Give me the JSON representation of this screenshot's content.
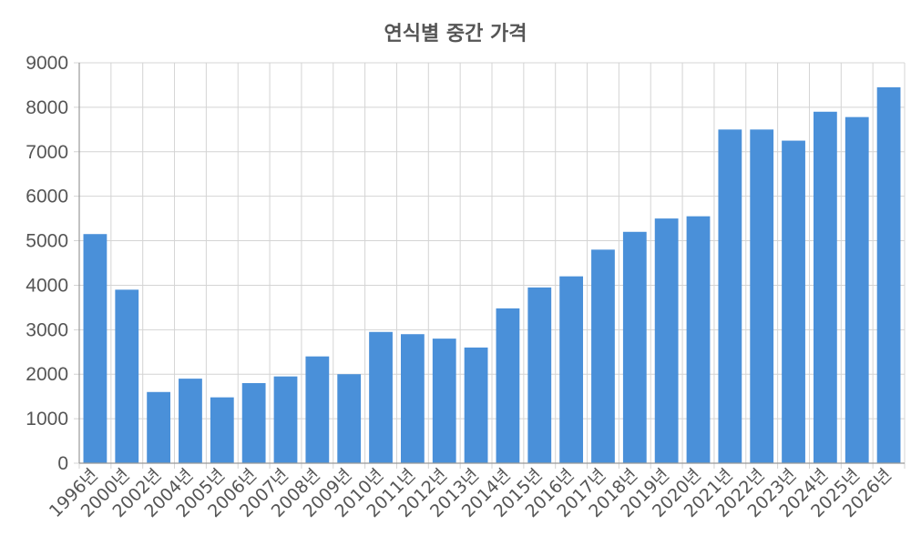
{
  "chart_data": {
    "type": "bar",
    "title": "연식별 중간 가격",
    "xlabel": "",
    "ylabel": "",
    "categories": [
      "1996년",
      "2000년",
      "2002년",
      "2004년",
      "2005년",
      "2006년",
      "2007년",
      "2008년",
      "2009년",
      "2010년",
      "2011년",
      "2012년",
      "2013년",
      "2014년",
      "2015년",
      "2016년",
      "2017년",
      "2018년",
      "2019년",
      "2020년",
      "2021년",
      "2022년",
      "2023년",
      "2024년",
      "2025년",
      "2026년"
    ],
    "values": [
      5150,
      3900,
      1600,
      1900,
      1480,
      1800,
      1950,
      2400,
      2000,
      2950,
      2900,
      2800,
      2600,
      3480,
      3950,
      4200,
      4800,
      5200,
      5500,
      5550,
      7500,
      7500,
      7250,
      7900,
      7780,
      8450
    ],
    "ylim": [
      0,
      9000
    ],
    "yticks": [
      0,
      1000,
      2000,
      3000,
      4000,
      5000,
      6000,
      7000,
      8000,
      9000
    ],
    "grid": true,
    "legend": "none",
    "bar_color": "#4a90d9"
  }
}
